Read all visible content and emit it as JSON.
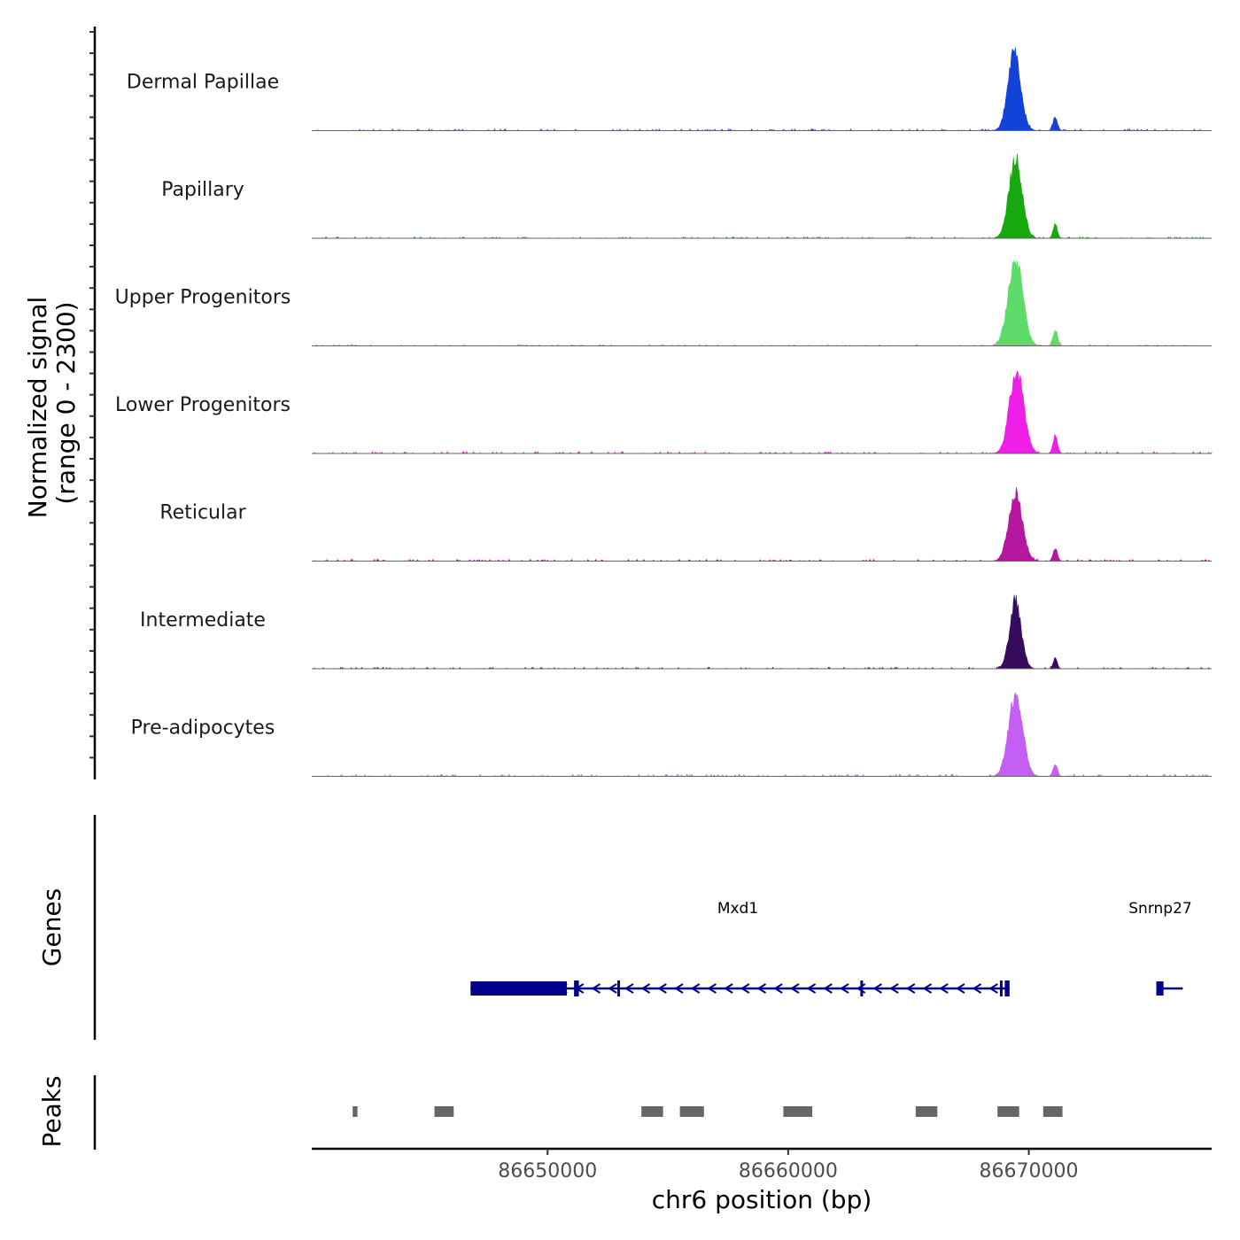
{
  "chart_data": {
    "type": "area",
    "title": "",
    "chromosome": "chr6",
    "xlabel": "chr6 position (bp)",
    "ylabel": "Normalized signal",
    "ylabel_range": "(range 0 - 2300)",
    "ylim": [
      0,
      2300
    ],
    "xlim": [
      86640200,
      86677600
    ],
    "x_ticks": [
      86650000,
      86660000,
      86670000
    ],
    "x_tick_labels": [
      "86650000",
      "86660000",
      "86670000"
    ],
    "series": [
      {
        "name": "Dermal Papillae",
        "color": "#1242d8",
        "peaks": [
          {
            "center": 86669400,
            "width": 260,
            "height": 2100
          },
          {
            "center": 86671100,
            "width": 90,
            "height": 380
          }
        ],
        "background": 45
      },
      {
        "name": "Papillary",
        "color": "#17a80e",
        "peaks": [
          {
            "center": 86669450,
            "width": 270,
            "height": 2200
          },
          {
            "center": 86671100,
            "width": 90,
            "height": 360
          }
        ],
        "background": 40
      },
      {
        "name": "Upper Progenitors",
        "color": "#5edb6a",
        "peaks": [
          {
            "center": 86669450,
            "width": 300,
            "height": 2300
          },
          {
            "center": 86671100,
            "width": 100,
            "height": 420
          }
        ],
        "background": 40
      },
      {
        "name": "Lower Progenitors",
        "color": "#f01fe8",
        "peaks": [
          {
            "center": 86669500,
            "width": 290,
            "height": 2300
          },
          {
            "center": 86671100,
            "width": 95,
            "height": 460
          }
        ],
        "background": 55
      },
      {
        "name": "Reticular",
        "color": "#b5179e",
        "peaks": [
          {
            "center": 86669450,
            "width": 280,
            "height": 1850
          },
          {
            "center": 86671100,
            "width": 90,
            "height": 340
          }
        ],
        "background": 50
      },
      {
        "name": "Intermediate",
        "color": "#380a5c",
        "peaks": [
          {
            "center": 86669450,
            "width": 240,
            "height": 1800
          },
          {
            "center": 86671100,
            "width": 80,
            "height": 280
          }
        ],
        "background": 40
      },
      {
        "name": "Pre-adipocytes",
        "color": "#c35ff2",
        "peaks": [
          {
            "center": 86669450,
            "width": 290,
            "height": 2200
          },
          {
            "center": 86671100,
            "width": 90,
            "height": 340
          }
        ],
        "background": 60
      }
    ],
    "genes_track": {
      "label": "Genes",
      "color": "#00008b",
      "genes": [
        {
          "name": "Mxd1",
          "start": 86646800,
          "end": 86669200,
          "strand": "-",
          "exons": [
            [
              86646800,
              86650800
            ],
            [
              86651100,
              86651300
            ],
            [
              86652900,
              86653000
            ],
            [
              86663000,
              86663060
            ],
            [
              86668800,
              86668900
            ],
            [
              86669000,
              86669200
            ]
          ]
        },
        {
          "name": "Snrnp27",
          "start": 86675300,
          "end": 86676400,
          "strand": "-",
          "exons": [
            [
              86675300,
              86675600
            ]
          ]
        }
      ]
    },
    "peaks_track": {
      "label": "Peaks",
      "color": "#666666",
      "regions": [
        [
          86641900,
          86642100
        ],
        [
          86645300,
          86646100
        ],
        [
          86653900,
          86654800
        ],
        [
          86655500,
          86656500
        ],
        [
          86659800,
          86661000
        ],
        [
          86665300,
          86666200
        ],
        [
          86668700,
          86669600
        ],
        [
          86670600,
          86671400
        ]
      ]
    }
  }
}
